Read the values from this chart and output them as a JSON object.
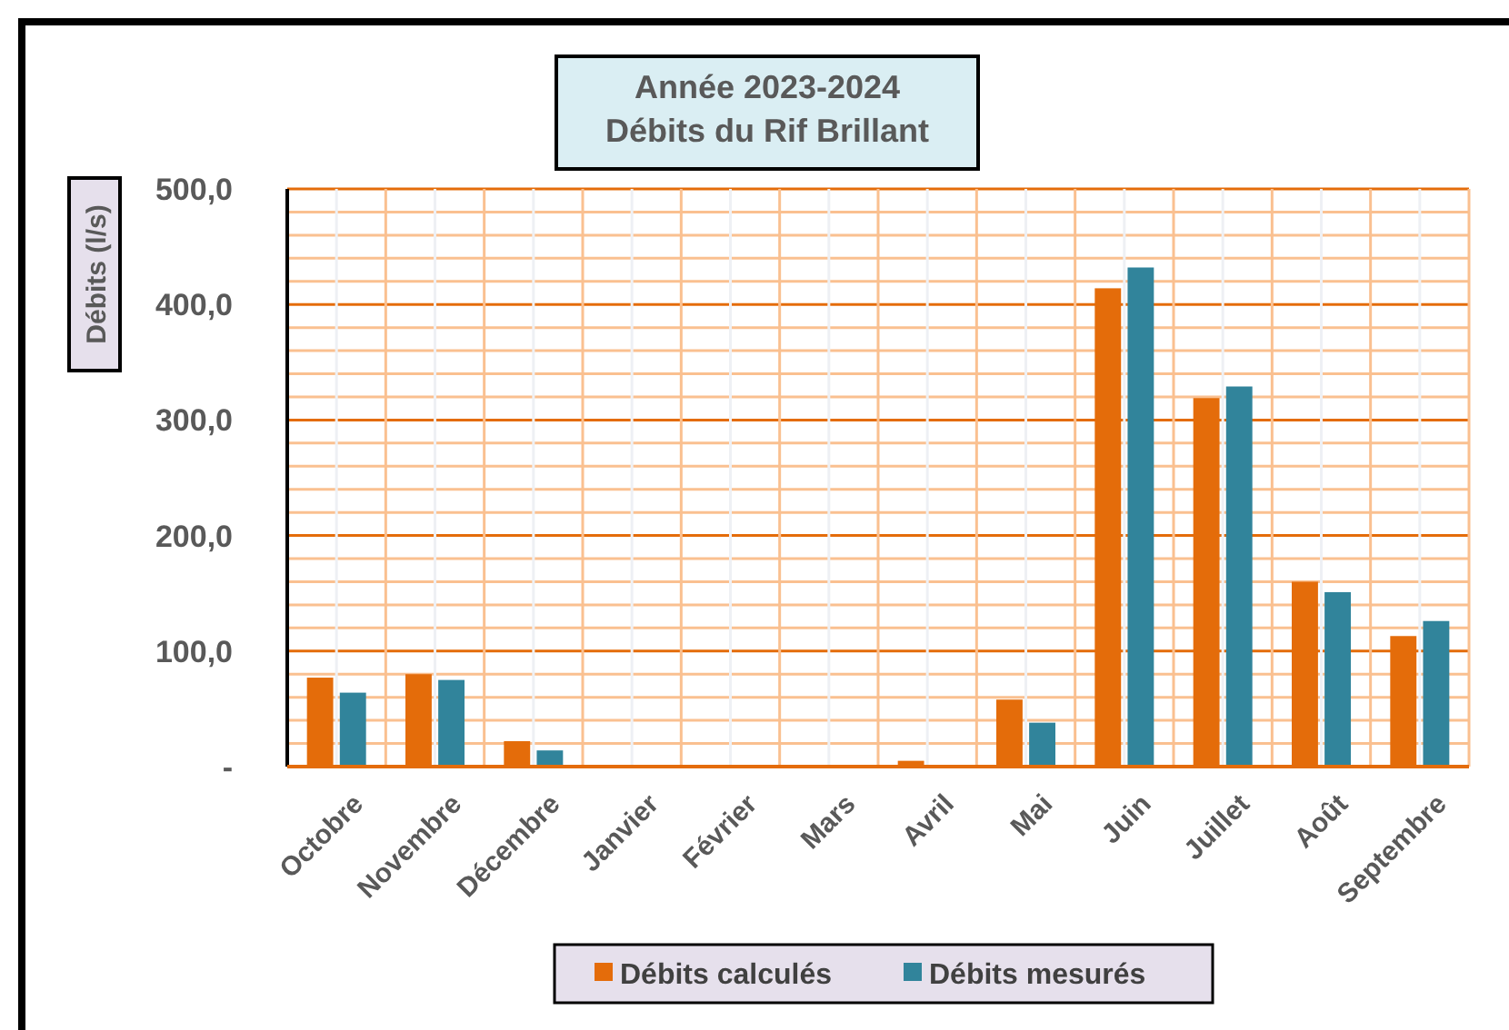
{
  "chart_data": {
    "type": "bar",
    "title": "Année 2023-2024\nDébits du Rif Brillant",
    "ylabel": "Débits (l/s)",
    "categories": [
      "Octobre",
      "Novembre",
      "Décembre",
      "Janvier",
      "Février",
      "Mars",
      "Avril",
      "Mai",
      "Juin",
      "Juillet",
      "Août",
      "Septembre"
    ],
    "series": [
      {
        "name": "Débits calculés",
        "color": "#e46c0a",
        "values": [
          77,
          80,
          22,
          null,
          null,
          null,
          5,
          58,
          414,
          319,
          160,
          113
        ]
      },
      {
        "name": "Débits mesurés",
        "color": "#31849b",
        "values": [
          64,
          75,
          14,
          null,
          null,
          null,
          null,
          38,
          432,
          329,
          151,
          126
        ]
      }
    ],
    "ylim": [
      0,
      500
    ],
    "yticks": [
      {
        "value": 0,
        "label": "-"
      },
      {
        "value": 20,
        "label": null
      },
      {
        "value": 40,
        "label": null
      },
      {
        "value": 60,
        "label": null
      },
      {
        "value": 80,
        "label": null
      },
      {
        "value": 100,
        "label": "100,0"
      },
      {
        "value": 120,
        "label": null
      },
      {
        "value": 140,
        "label": null
      },
      {
        "value": 160,
        "label": null
      },
      {
        "value": 180,
        "label": null
      },
      {
        "value": 200,
        "label": "200,0"
      },
      {
        "value": 220,
        "label": null
      },
      {
        "value": 240,
        "label": null
      },
      {
        "value": 260,
        "label": null
      },
      {
        "value": 280,
        "label": null
      },
      {
        "value": 300,
        "label": "300,0"
      },
      {
        "value": 320,
        "label": null
      },
      {
        "value": 340,
        "label": null
      },
      {
        "value": 360,
        "label": null
      },
      {
        "value": 380,
        "label": null
      },
      {
        "value": 400,
        "label": "400,0"
      },
      {
        "value": 420,
        "label": null
      },
      {
        "value": 440,
        "label": null
      },
      {
        "value": 460,
        "label": null
      },
      {
        "value": 480,
        "label": null
      },
      {
        "value": 500,
        "label": "500,0"
      }
    ],
    "grid": true,
    "legend": "bottom"
  }
}
